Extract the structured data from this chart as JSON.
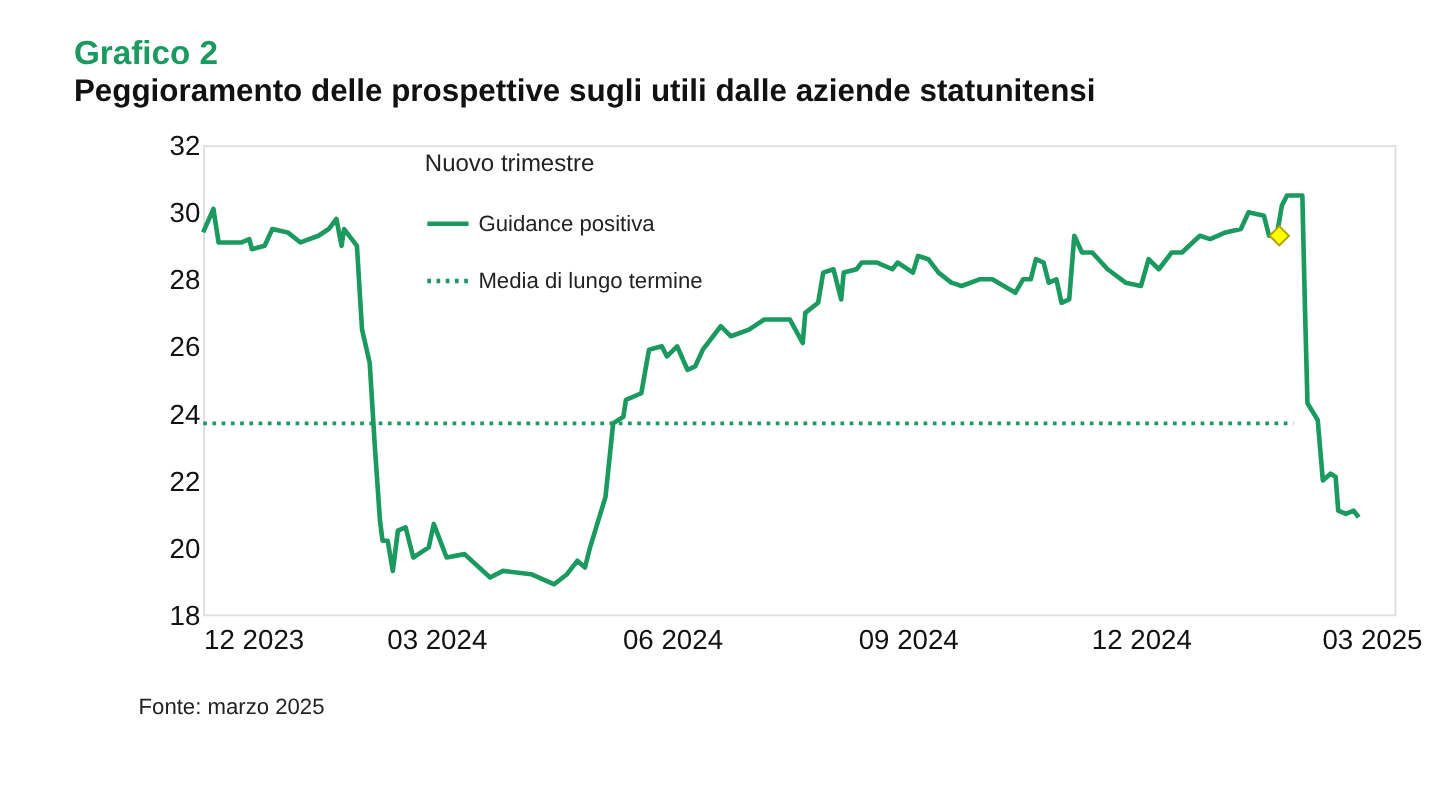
{
  "chart_data": {
    "type": "line",
    "title": "Grafico 2",
    "subtitle": "Peggioramento delle prospettive sugli utili dalle aziende statunitensi",
    "series": [
      {
        "name": "Guidance positiva",
        "color": "#1a9a5f",
        "type": "line",
        "x": [
          "2023-12-01",
          "2023-12-05",
          "2023-12-07",
          "2023-12-16",
          "2023-12-19",
          "2023-12-20",
          "2023-12-25",
          "2023-12-28",
          "2024-01-03",
          "2024-01-08",
          "2024-01-15",
          "2024-01-19",
          "2024-01-22",
          "2024-01-24",
          "2024-01-25",
          "2024-01-30",
          "2024-02-01",
          "2024-02-04",
          "2024-02-06",
          "2024-02-08",
          "2024-02-09",
          "2024-02-11",
          "2024-02-13",
          "2024-02-15",
          "2024-02-18",
          "2024-02-21",
          "2024-02-27",
          "2024-02-29",
          "2024-03-02",
          "2024-03-05",
          "2024-03-12",
          "2024-03-22",
          "2024-03-27",
          "2024-04-07",
          "2024-04-16",
          "2024-04-21",
          "2024-04-25",
          "2024-04-28",
          "2024-04-30",
          "2024-05-06",
          "2024-05-09",
          "2024-05-13",
          "2024-05-14",
          "2024-05-20",
          "2024-05-23",
          "2024-05-28",
          "2024-05-30",
          "2024-06-03",
          "2024-06-07",
          "2024-06-10",
          "2024-06-13",
          "2024-06-20",
          "2024-06-24",
          "2024-07-01",
          "2024-07-07",
          "2024-07-17",
          "2024-07-22",
          "2024-07-23",
          "2024-07-28",
          "2024-07-30",
          "2024-08-03",
          "2024-08-06",
          "2024-08-07",
          "2024-08-12",
          "2024-08-14",
          "2024-08-20",
          "2024-08-26",
          "2024-08-28",
          "2024-09-03",
          "2024-09-05",
          "2024-09-09",
          "2024-09-13",
          "2024-09-18",
          "2024-09-22",
          "2024-09-29",
          "2024-10-04",
          "2024-10-13",
          "2024-10-16",
          "2024-10-19",
          "2024-10-21",
          "2024-10-24",
          "2024-10-26",
          "2024-10-29",
          "2024-10-31",
          "2024-11-03",
          "2024-11-05",
          "2024-11-08",
          "2024-11-12",
          "2024-11-18",
          "2024-11-25",
          "2024-12-01",
          "2024-12-04",
          "2024-12-08",
          "2024-12-13",
          "2024-12-17",
          "2024-12-24",
          "2024-12-28",
          "2025-01-03",
          "2025-01-09",
          "2025-01-12",
          "2025-01-18",
          "2025-01-20",
          "2025-01-23",
          "2025-01-25",
          "2025-01-27",
          "2025-02-02",
          "2025-02-03",
          "2025-02-04",
          "2025-02-08",
          "2025-02-10",
          "2025-02-13",
          "2025-02-15",
          "2025-02-16",
          "2025-02-19",
          "2025-02-22",
          "2025-02-24"
        ],
        "values": [
          29.4,
          30.1,
          29.1,
          29.1,
          29.2,
          28.9,
          29.0,
          29.5,
          29.4,
          29.1,
          29.3,
          29.5,
          29.8,
          29.0,
          29.5,
          29.0,
          26.5,
          25.5,
          23.0,
          20.8,
          20.2,
          20.2,
          19.3,
          20.5,
          20.6,
          19.7,
          20.0,
          20.7,
          20.3,
          19.7,
          19.8,
          19.1,
          19.3,
          19.2,
          18.9,
          19.2,
          19.6,
          19.4,
          20.0,
          21.5,
          23.7,
          23.9,
          24.4,
          24.6,
          25.9,
          26.0,
          25.7,
          26.0,
          25.3,
          25.4,
          25.9,
          26.6,
          26.3,
          26.5,
          26.8,
          26.8,
          26.1,
          27.0,
          27.3,
          28.2,
          28.3,
          27.4,
          28.2,
          28.3,
          28.5,
          28.5,
          28.3,
          28.5,
          28.2,
          28.7,
          28.6,
          28.2,
          27.9,
          27.8,
          28.0,
          28.0,
          27.6,
          28.0,
          28.0,
          28.6,
          28.5,
          27.9,
          28.0,
          27.3,
          27.4,
          29.3,
          28.8,
          28.8,
          28.3,
          27.9,
          27.8,
          28.6,
          28.3,
          28.8,
          28.8,
          29.3,
          29.2,
          29.4,
          29.5,
          30.0,
          29.9,
          29.3,
          29.3,
          30.2,
          30.5,
          30.5,
          27.2,
          24.3,
          23.8,
          22.0,
          22.2,
          22.1,
          21.1,
          21.0,
          21.1,
          20.9
        ]
      },
      {
        "type": "scatter",
        "color": "#ffff00",
        "marker": "diamond",
        "x": [
          "2025-01-24"
        ],
        "values": [
          29.3
        ]
      }
    ],
    "xlim": [
      "2023-12-01",
      "2025-03-10"
    ],
    "xticks": [
      {
        "value": "2023-12-01",
        "label": "12 2023"
      },
      {
        "value": "2024-03-01",
        "label": "03 2024"
      },
      {
        "value": "2024-06-01",
        "label": "06 2024"
      },
      {
        "value": "2024-09-01",
        "label": "09 2024"
      },
      {
        "value": "2024-12-01",
        "label": "12 2024"
      },
      {
        "value": "2025-03-01",
        "label": "03 2025"
      }
    ],
    "ylim": [
      18,
      32
    ],
    "yticks": [
      18,
      20,
      22,
      24,
      26,
      28,
      30,
      32
    ],
    "ref_lines": [
      {
        "axis": "y",
        "value": 23.7,
        "label": "Media di lungo termine",
        "color": "#1a9a5f",
        "line_style": "dotted"
      }
    ],
    "legend": "top",
    "grid": false,
    "marker": "none",
    "line_style": "solid",
    "annotations": [
      "Nuovo trimestre",
      "Fonte: marzo 2025"
    ]
  }
}
